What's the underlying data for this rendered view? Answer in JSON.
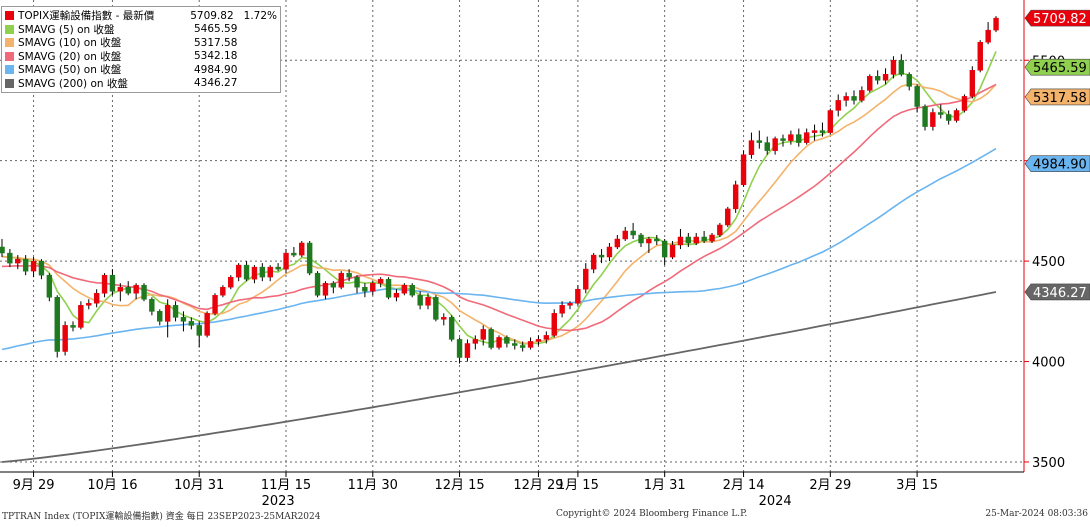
{
  "legend": {
    "items": [
      {
        "name": "TOPIX運輸設備指數 - 最新價",
        "value": "5709.82",
        "change": "1.72%",
        "color": "#e8000b"
      },
      {
        "name": "SMAVG (5)  on 收盤",
        "value": "5465.59",
        "color": "#8fd14f"
      },
      {
        "name": "SMAVG (10)  on 收盤",
        "value": "5317.58",
        "color": "#f4b36a"
      },
      {
        "name": "SMAVG (20)  on 收盤",
        "value": "5342.18",
        "color": "#f06a7a"
      },
      {
        "name": "SMAVG (50)  on 收盤",
        "value": "4984.90",
        "color": "#6ab4f0"
      },
      {
        "name": "SMAVG (200)  on 收盤",
        "value": "4346.27",
        "color": "#666666"
      }
    ]
  },
  "footer": {
    "left": "TPTRAN Index (TOPIX運輸設備指數) 資金  每日 23SEP2023-25MAR2024",
    "center": "Copyright© 2024 Bloomberg Finance L.P.",
    "right": "25-Mar-2024 08:03:36"
  },
  "chart_data": {
    "type": "candlestick",
    "y_axis": {
      "range": [
        3450,
        5800
      ],
      "ticks": [
        3500,
        4000,
        4500,
        5000,
        5500
      ],
      "position": "right"
    },
    "x_ticks": [
      {
        "label": "9月 29",
        "index": 4
      },
      {
        "label": "10月 16",
        "index": 14
      },
      {
        "label": "10月 31",
        "index": 25
      },
      {
        "label": "11月 15",
        "index": 36
      },
      {
        "label": "11月 30",
        "index": 47
      },
      {
        "label": "12月 15",
        "index": 58
      },
      {
        "label": "12月 29",
        "index": 68
      },
      {
        "label": "1月 15",
        "index": 73
      },
      {
        "label": "1月 31",
        "index": 84
      },
      {
        "label": "2月 14",
        "index": 94
      },
      {
        "label": "2月 29",
        "index": 105
      },
      {
        "label": "3月 15",
        "index": 116
      }
    ],
    "year_labels": [
      {
        "label": "2023",
        "index": 35
      },
      {
        "label": "2024",
        "index": 98
      }
    ],
    "value_badges": [
      {
        "series": "TOPIX運輸設備指數",
        "value": "5709.82",
        "bg": "#e8000b",
        "fg": "#ffffff"
      },
      {
        "series": "SMAVG (5)",
        "value": "5465.59",
        "bg": "#8fd14f",
        "fg": "#000000"
      },
      {
        "series": "SMAVG (10)",
        "value": "5317.58",
        "bg": "#f4b36a",
        "fg": "#000000"
      },
      {
        "series": "SMAVG (50)",
        "value": "4984.90",
        "bg": "#6ab4f0",
        "fg": "#000000"
      },
      {
        "series": "SMAVG (200)",
        "value": "4346.27",
        "bg": "#666666",
        "fg": "#ffffff"
      }
    ],
    "ohlc": [
      [
        4570,
        4610,
        4520,
        4540
      ],
      [
        4540,
        4560,
        4470,
        4490
      ],
      [
        4490,
        4530,
        4460,
        4510
      ],
      [
        4510,
        4530,
        4430,
        4450
      ],
      [
        4450,
        4520,
        4420,
        4500
      ],
      [
        4500,
        4510,
        4410,
        4430
      ],
      [
        4430,
        4440,
        4300,
        4320
      ],
      [
        4320,
        4330,
        4020,
        4050
      ],
      [
        4050,
        4200,
        4030,
        4180
      ],
      [
        4180,
        4200,
        4150,
        4170
      ],
      [
        4170,
        4300,
        4160,
        4280
      ],
      [
        4280,
        4310,
        4260,
        4290
      ],
      [
        4290,
        4360,
        4270,
        4340
      ],
      [
        4340,
        4440,
        4320,
        4430
      ],
      [
        4430,
        4460,
        4330,
        4350
      ],
      [
        4350,
        4390,
        4300,
        4370
      ],
      [
        4370,
        4400,
        4330,
        4340
      ],
      [
        4340,
        4390,
        4310,
        4380
      ],
      [
        4380,
        4390,
        4300,
        4310
      ],
      [
        4310,
        4320,
        4230,
        4250
      ],
      [
        4250,
        4260,
        4180,
        4200
      ],
      [
        4200,
        4310,
        4120,
        4280
      ],
      [
        4280,
        4300,
        4200,
        4220
      ],
      [
        4220,
        4250,
        4150,
        4200
      ],
      [
        4200,
        4220,
        4160,
        4180
      ],
      [
        4180,
        4200,
        4070,
        4130
      ],
      [
        4130,
        4250,
        4120,
        4240
      ],
      [
        4240,
        4340,
        4230,
        4330
      ],
      [
        4330,
        4380,
        4320,
        4370
      ],
      [
        4370,
        4430,
        4360,
        4420
      ],
      [
        4420,
        4490,
        4400,
        4480
      ],
      [
        4480,
        4500,
        4400,
        4410
      ],
      [
        4410,
        4480,
        4390,
        4470
      ],
      [
        4470,
        4490,
        4400,
        4420
      ],
      [
        4420,
        4480,
        4400,
        4470
      ],
      [
        4470,
        4490,
        4450,
        4460
      ],
      [
        4460,
        4560,
        4440,
        4540
      ],
      [
        4540,
        4570,
        4520,
        4530
      ],
      [
        4530,
        4600,
        4520,
        4590
      ],
      [
        4590,
        4600,
        4430,
        4440
      ],
      [
        4440,
        4450,
        4320,
        4330
      ],
      [
        4330,
        4400,
        4310,
        4390
      ],
      [
        4390,
        4400,
        4340,
        4370
      ],
      [
        4370,
        4450,
        4360,
        4440
      ],
      [
        4440,
        4460,
        4400,
        4420
      ],
      [
        4420,
        4430,
        4340,
        4370
      ],
      [
        4370,
        4390,
        4320,
        4350
      ],
      [
        4350,
        4400,
        4330,
        4390
      ],
      [
        4390,
        4420,
        4370,
        4410
      ],
      [
        4410,
        4420,
        4310,
        4320
      ],
      [
        4320,
        4360,
        4300,
        4340
      ],
      [
        4340,
        4390,
        4330,
        4380
      ],
      [
        4380,
        4390,
        4320,
        4330
      ],
      [
        4330,
        4350,
        4260,
        4280
      ],
      [
        4280,
        4340,
        4260,
        4320
      ],
      [
        4320,
        4330,
        4200,
        4210
      ],
      [
        4210,
        4240,
        4180,
        4220
      ],
      [
        4220,
        4230,
        4100,
        4110
      ],
      [
        4110,
        4120,
        3990,
        4020
      ],
      [
        4020,
        4110,
        4000,
        4090
      ],
      [
        4090,
        4130,
        4060,
        4110
      ],
      [
        4110,
        4180,
        4080,
        4160
      ],
      [
        4160,
        4170,
        4060,
        4070
      ],
      [
        4070,
        4130,
        4060,
        4120
      ],
      [
        4120,
        4130,
        4070,
        4090
      ],
      [
        4090,
        4110,
        4060,
        4080
      ],
      [
        4080,
        4100,
        4050,
        4070
      ],
      [
        4070,
        4120,
        4060,
        4100
      ],
      [
        4100,
        4130,
        4080,
        4110
      ],
      [
        4110,
        4150,
        4090,
        4130
      ],
      [
        4130,
        4260,
        4120,
        4240
      ],
      [
        4240,
        4300,
        4220,
        4280
      ],
      [
        4280,
        4300,
        4260,
        4290
      ],
      [
        4290,
        4380,
        4280,
        4360
      ],
      [
        4360,
        4490,
        4340,
        4460
      ],
      [
        4460,
        4540,
        4440,
        4530
      ],
      [
        4530,
        4560,
        4490,
        4520
      ],
      [
        4520,
        4590,
        4500,
        4570
      ],
      [
        4570,
        4630,
        4560,
        4610
      ],
      [
        4610,
        4670,
        4600,
        4650
      ],
      [
        4650,
        4690,
        4610,
        4630
      ],
      [
        4630,
        4640,
        4570,
        4590
      ],
      [
        4590,
        4620,
        4540,
        4610
      ],
      [
        4610,
        4630,
        4580,
        4600
      ],
      [
        4600,
        4610,
        4480,
        4520
      ],
      [
        4520,
        4600,
        4510,
        4580
      ],
      [
        4580,
        4660,
        4560,
        4620
      ],
      [
        4620,
        4640,
        4570,
        4590
      ],
      [
        4590,
        4640,
        4580,
        4620
      ],
      [
        4620,
        4650,
        4590,
        4600
      ],
      [
        4600,
        4640,
        4590,
        4630
      ],
      [
        4630,
        4690,
        4620,
        4680
      ],
      [
        4680,
        4770,
        4670,
        4760
      ],
      [
        4760,
        4900,
        4740,
        4880
      ],
      [
        4880,
        5050,
        4870,
        5030
      ],
      [
        5030,
        5140,
        5010,
        5100
      ],
      [
        5100,
        5150,
        5060,
        5090
      ],
      [
        5090,
        5120,
        5030,
        5050
      ],
      [
        5050,
        5120,
        5030,
        5110
      ],
      [
        5110,
        5130,
        5070,
        5100
      ],
      [
        5100,
        5150,
        5080,
        5130
      ],
      [
        5130,
        5160,
        5070,
        5090
      ],
      [
        5090,
        5160,
        5080,
        5140
      ],
      [
        5140,
        5180,
        5100,
        5150
      ],
      [
        5150,
        5190,
        5120,
        5140
      ],
      [
        5140,
        5260,
        5130,
        5250
      ],
      [
        5250,
        5330,
        5220,
        5300
      ],
      [
        5300,
        5340,
        5270,
        5320
      ],
      [
        5320,
        5350,
        5280,
        5300
      ],
      [
        5300,
        5370,
        5290,
        5350
      ],
      [
        5350,
        5430,
        5340,
        5420
      ],
      [
        5420,
        5450,
        5380,
        5400
      ],
      [
        5400,
        5460,
        5380,
        5430
      ],
      [
        5430,
        5520,
        5410,
        5500
      ],
      [
        5500,
        5530,
        5420,
        5430
      ],
      [
        5430,
        5440,
        5350,
        5370
      ],
      [
        5370,
        5380,
        5240,
        5270
      ],
      [
        5270,
        5280,
        5150,
        5170
      ],
      [
        5170,
        5260,
        5150,
        5240
      ],
      [
        5240,
        5280,
        5210,
        5230
      ],
      [
        5230,
        5250,
        5180,
        5200
      ],
      [
        5200,
        5260,
        5190,
        5250
      ],
      [
        5250,
        5330,
        5240,
        5320
      ],
      [
        5320,
        5470,
        5310,
        5450
      ],
      [
        5450,
        5600,
        5440,
        5590
      ],
      [
        5590,
        5690,
        5580,
        5650
      ],
      [
        5650,
        5720,
        5640,
        5709.82
      ]
    ]
  }
}
